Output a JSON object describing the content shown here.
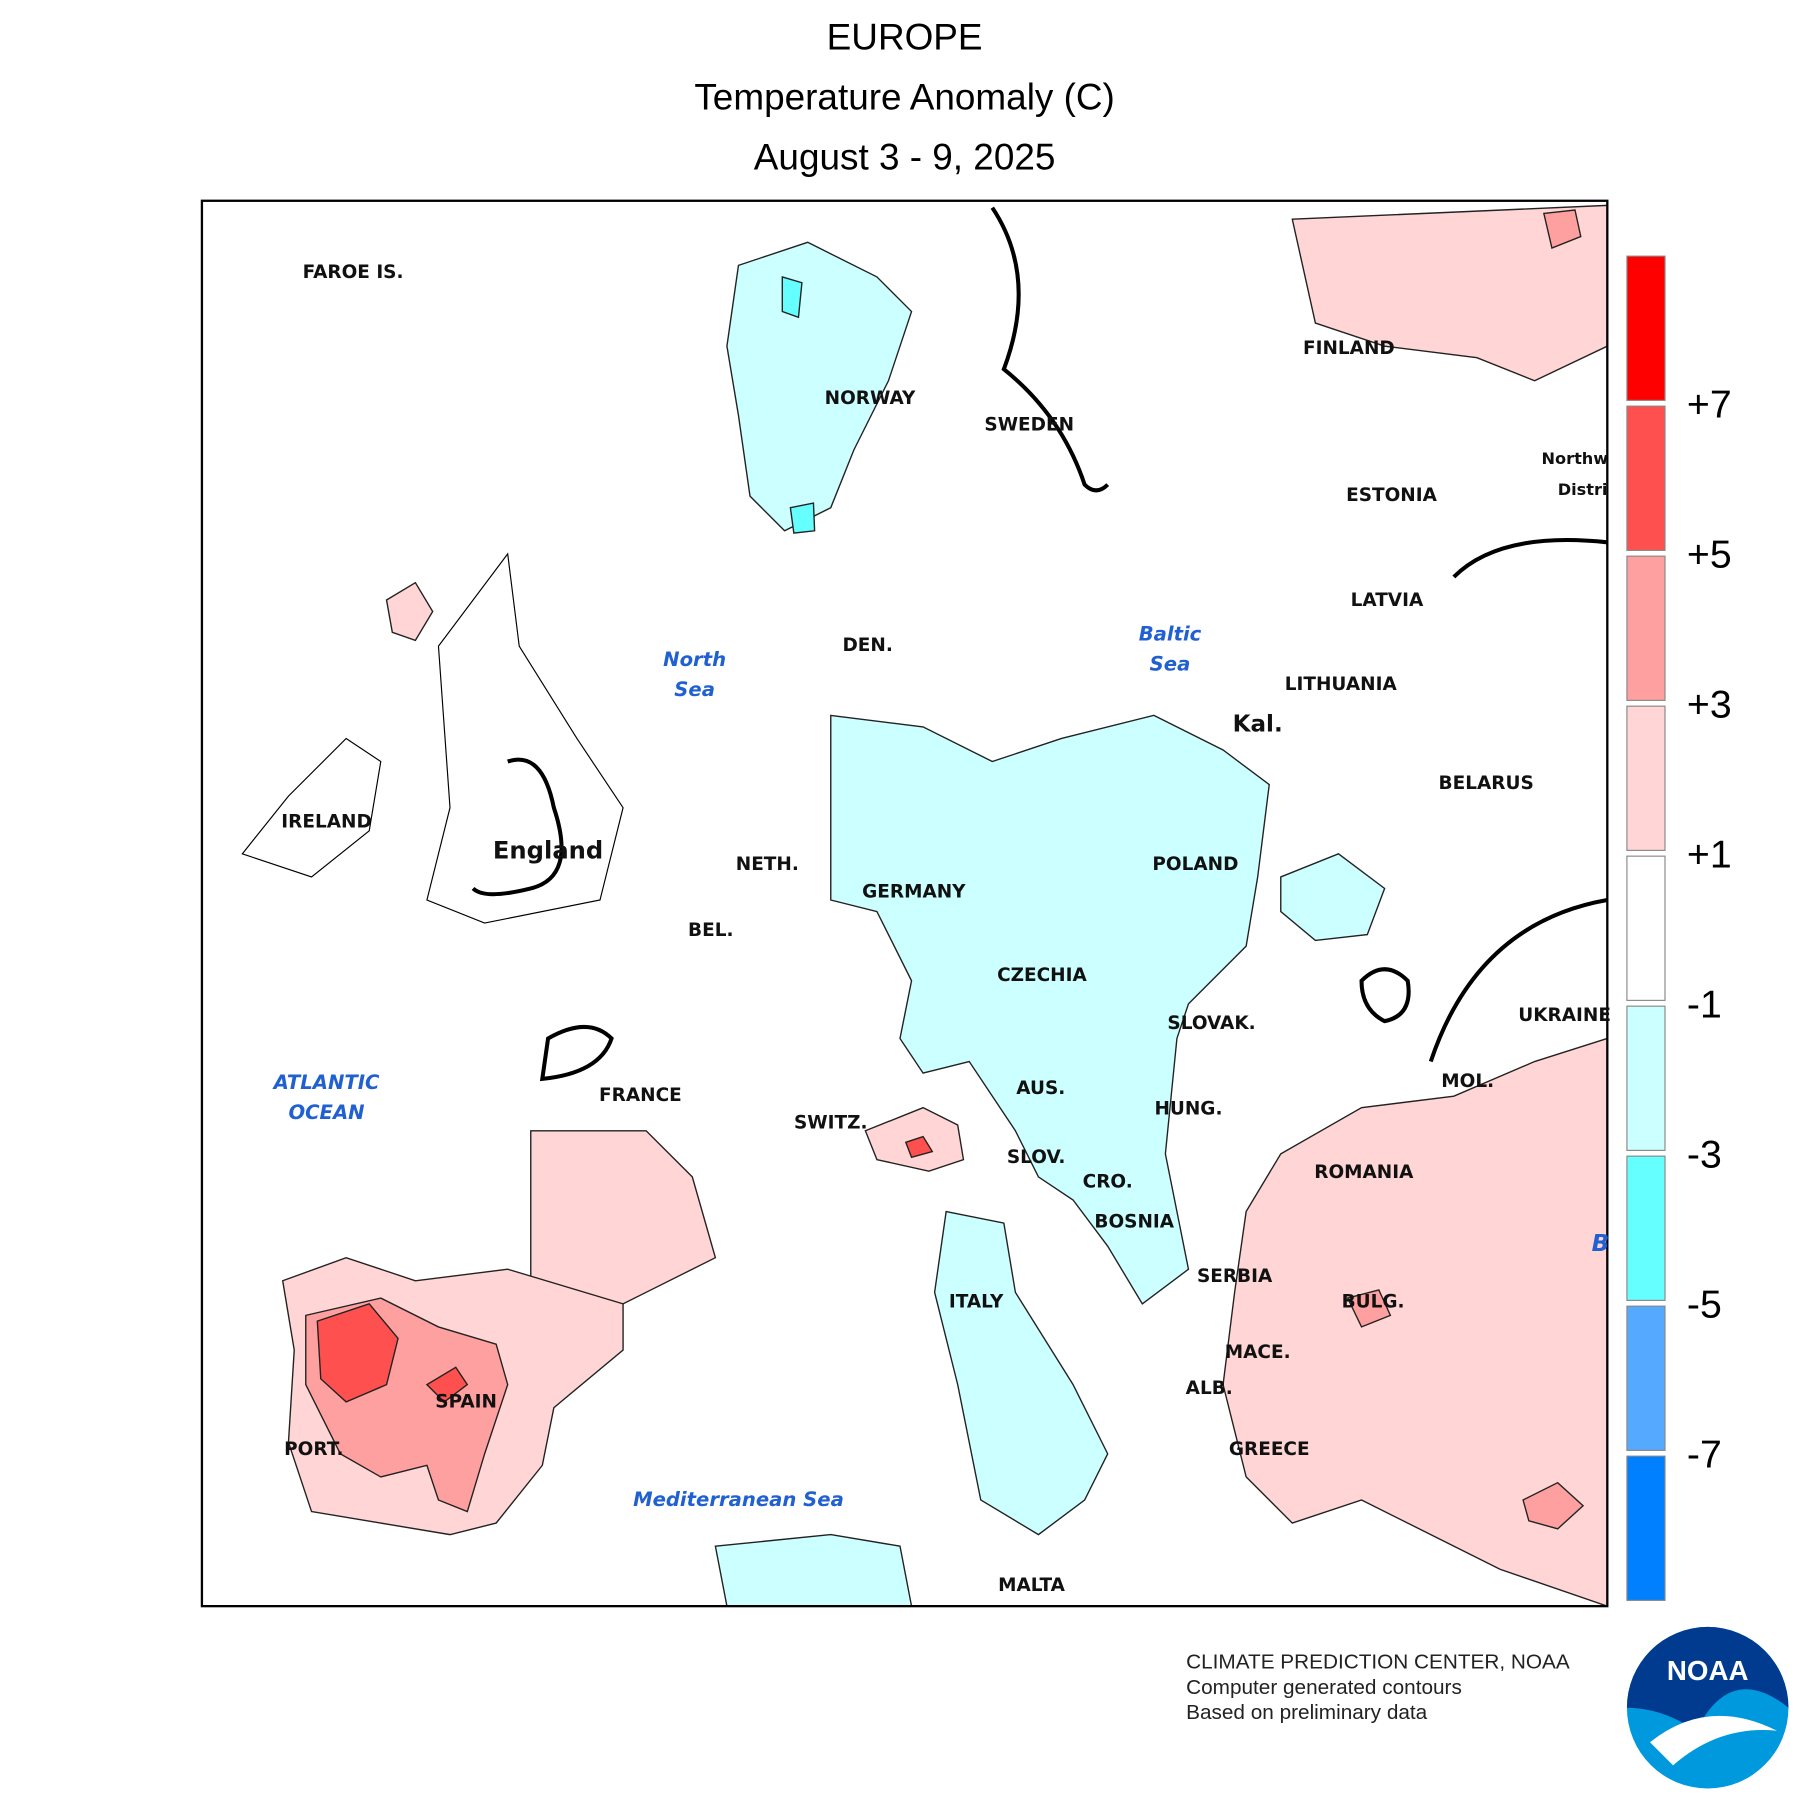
{
  "header": {
    "title": "EUROPE",
    "subtitle": "Temperature Anomaly (C)",
    "date": "August 3 - 9, 2025"
  },
  "map": {
    "labels": [
      "FAROE IS.",
      "NORWAY",
      "SWEDEN",
      "FINLAND",
      "ESTONIA",
      "LATVIA",
      "LITHUANIA",
      "Kal.",
      "BELARUS",
      "DEN.",
      "IRELAND",
      "England",
      "NETH.",
      "BEL.",
      "GERMANY",
      "POLAND",
      "CZECHIA",
      "SLOVAK.",
      "UKRAINE",
      "MOL.",
      "HUNG.",
      "AUS.",
      "SWITZ.",
      "FRANCE",
      "SLOV.",
      "CRO.",
      "BOSNIA",
      "ROMANIA",
      "SERBIA",
      "BULG.",
      "MACE.",
      "ALB.",
      "GREECE",
      "ITALY",
      "SPAIN",
      "PORT.",
      "MALTA",
      "Northw",
      "Distri"
    ],
    "seas": [
      [
        "North",
        "Sea"
      ],
      [
        "Baltic",
        "Sea"
      ],
      [
        "ATLANTIC",
        "OCEAN"
      ],
      [
        "Mediterranean Sea"
      ],
      [
        "B"
      ]
    ]
  },
  "legend": {
    "colors": [
      "#ff0000",
      "#ff5050",
      "#ffa0a0",
      "#ffd5d5",
      "#ffffff",
      "#ccffff",
      "#66ffff",
      "#55aaff",
      "#0080ff"
    ],
    "labels": [
      "+7",
      "+5",
      "+3",
      "+1",
      "-1",
      "-3",
      "-5",
      "-7"
    ]
  },
  "footer": {
    "credits": [
      "CLIMATE PREDICTION CENTER, NOAA",
      "Computer generated contours",
      "Based on preliminary data"
    ],
    "logo": "NOAA"
  }
}
